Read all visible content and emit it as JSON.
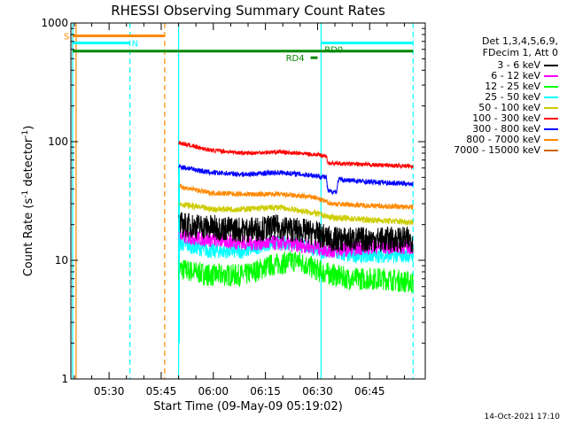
{
  "chart_data": {
    "type": "line",
    "title": "RHESSI Observing Summary Count Rates",
    "xlabel": "Start Time (09-May-09 05:19:02)",
    "ylabel_main": "Count Rate (s",
    "ylabel_sup1": "-1",
    "ylabel_mid": " detector",
    "ylabel_sup2": "-1",
    "ylabel_end": ")",
    "yscale": "log",
    "ylim": [
      1,
      1000
    ],
    "xlim_minutes": [
      0,
      102
    ],
    "x_ticks": [
      {
        "label": "05:30",
        "minute": 11
      },
      {
        "label": "05:45",
        "minute": 26
      },
      {
        "label": "06:00",
        "minute": 41
      },
      {
        "label": "06:15",
        "minute": 56
      },
      {
        "label": "06:30",
        "minute": 71
      },
      {
        "label": "06:45",
        "minute": 86
      }
    ],
    "y_ticks": [
      {
        "label": "1",
        "value": 1
      },
      {
        "label": "10",
        "value": 10
      },
      {
        "label": "100",
        "value": 100
      },
      {
        "label": "1000",
        "value": 1000
      }
    ],
    "data_start_minute": 31,
    "data_end_minute": 98.5,
    "series": [
      {
        "name": "3 - 6 keV",
        "color": "#000000",
        "x": [
          31,
          40,
          50,
          60,
          70,
          75,
          85,
          98.5
        ],
        "values": [
          20,
          19,
          18,
          19,
          17,
          15,
          15,
          15
        ],
        "noise": 0.25
      },
      {
        "name": "6 - 12 keV",
        "color": "#ff00ff",
        "x": [
          31,
          40,
          50,
          60,
          70,
          75,
          85,
          98.5
        ],
        "values": [
          16,
          15,
          14,
          14,
          13,
          12,
          13,
          13
        ],
        "noise": 0.15
      },
      {
        "name": "12 - 25 keV",
        "color": "#00ff00",
        "x": [
          31,
          40,
          50,
          57,
          65,
          72,
          80,
          90,
          98.5
        ],
        "values": [
          8.5,
          7.5,
          7.5,
          9,
          10,
          8,
          7,
          7,
          6.5
        ],
        "noise": 0.22
      },
      {
        "name": "25 - 50 keV",
        "color": "#00ffff",
        "x": [
          31,
          40,
          50,
          57,
          65,
          72,
          80,
          90,
          98.5
        ],
        "values": [
          14,
          12,
          12,
          14,
          14,
          12,
          11,
          11,
          11
        ],
        "noise": 0.15
      },
      {
        "name": "50 - 100 keV",
        "color": "#cccc00",
        "x": [
          31,
          40,
          50,
          60,
          70,
          75,
          85,
          98.5
        ],
        "values": [
          30,
          27,
          27,
          28,
          25,
          23,
          22,
          21
        ],
        "noise": 0.06
      },
      {
        "name": "100 - 300 keV",
        "color": "#ff0000",
        "x": [
          31,
          40,
          50,
          60,
          70,
          73.5,
          74,
          85,
          98.5
        ],
        "values": [
          98,
          85,
          80,
          82,
          78,
          76,
          66,
          64,
          62
        ],
        "noise": 0.04
      },
      {
        "name": "300 - 800 keV",
        "color": "#0000ff",
        "x": [
          31,
          40,
          50,
          60,
          70,
          73.5,
          74,
          76.5,
          77,
          85,
          98.5
        ],
        "values": [
          62,
          55,
          53,
          55,
          52,
          50,
          38,
          38,
          48,
          46,
          44
        ],
        "noise": 0.05
      },
      {
        "name": "800 - 7000 keV",
        "color": "#ff8800",
        "x": [
          31,
          40,
          50,
          60,
          70,
          75,
          85,
          98.5
        ],
        "values": [
          42,
          37,
          36,
          36,
          34,
          30,
          29,
          28
        ],
        "noise": 0.05
      },
      {
        "name": "7000 - 15000 keV",
        "color": "#cc6600",
        "x": [],
        "values": [],
        "noise": 0
      }
    ],
    "flags": [
      {
        "label": "S",
        "color": "#ff8800",
        "start": 0.5,
        "end": 27,
        "value": 780,
        "width": 3
      },
      {
        "label": "N",
        "color": "#00ffff",
        "start": 0.5,
        "end": 17,
        "value": 680,
        "width": 3
      },
      {
        "label": "",
        "color": "#00ffff",
        "start": 72,
        "end": 98.5,
        "value": 680,
        "width": 3
      },
      {
        "label": "RD0",
        "color": "#008800",
        "start": 0.5,
        "end": 98.5,
        "value": 580,
        "width": 3
      },
      {
        "label": "RD4",
        "color": "#008800",
        "start": 69,
        "end": 71,
        "value": 510,
        "width": 3
      }
    ],
    "vlines": [
      {
        "minute": 0.5,
        "color": "#00ffff",
        "dashed": false
      },
      {
        "minute": 1.5,
        "color": "#ff8800",
        "dashed": false
      },
      {
        "minute": 17,
        "color": "#00ffff",
        "dashed": true
      },
      {
        "minute": 27,
        "color": "#ff8800",
        "dashed": true
      },
      {
        "minute": 31,
        "color": "#00ffff",
        "dashed": false
      },
      {
        "minute": 72,
        "color": "#00ffff",
        "dashed": false
      },
      {
        "minute": 98.5,
        "color": "#00ffff",
        "dashed": true
      }
    ],
    "legend_header": [
      "Det 1,3,4,5,6,9,",
      "FDecim 1, Att 0"
    ],
    "legend_placement": "right"
  },
  "footer_date": "14-Oct-2021 17:10"
}
